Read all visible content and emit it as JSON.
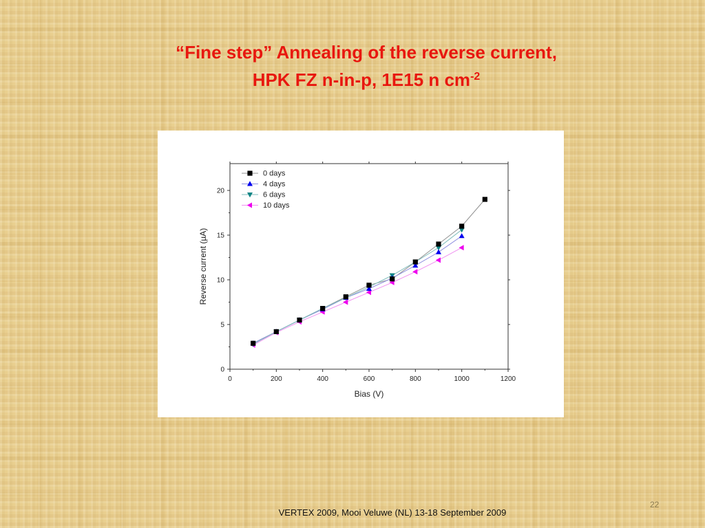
{
  "slide": {
    "title_line1": "“Fine step” Annealing of the reverse current,",
    "title_line2": "HPK FZ n-in-p, 1E15 n cm",
    "title_superscript": "-2",
    "footer": "VERTEX 2009, Mooi Veluwe (NL) 13-18 September 2009",
    "page_number": "22"
  },
  "chart_data": {
    "type": "line",
    "xlabel": "Bias (V)",
    "ylabel": "Reverse current (µA)",
    "xlim": [
      0,
      1200
    ],
    "ylim": [
      0,
      23
    ],
    "xticks": [
      "0",
      "200",
      "400",
      "600",
      "800",
      "1000",
      "1200"
    ],
    "yticks": [
      "0",
      "5",
      "10",
      "15",
      "20"
    ],
    "legend_position": "top-left",
    "grid": false,
    "series": [
      {
        "name": "0 days",
        "marker": "square",
        "color": "#000000",
        "line_color": "#909090",
        "x": [
          100,
          200,
          300,
          400,
          500,
          600,
          700,
          800,
          900,
          1000,
          1100
        ],
        "y": [
          2.9,
          4.2,
          5.5,
          6.8,
          8.1,
          9.4,
          10.1,
          12.0,
          14.0,
          16.0,
          19.0
        ]
      },
      {
        "name": "4 days",
        "marker": "triangle-up",
        "color": "#0000ee",
        "line_color": "#9090e0",
        "x": [
          100,
          200,
          300,
          400,
          500,
          600,
          700,
          800,
          900,
          1000
        ],
        "y": [
          2.9,
          4.2,
          5.5,
          6.7,
          8.0,
          9.0,
          10.2,
          11.6,
          13.1,
          14.9
        ]
      },
      {
        "name": "6 days",
        "marker": "triangle-down",
        "color": "#108585",
        "line_color": "#80bcbc",
        "x": [
          100,
          200,
          300,
          400,
          500,
          600,
          700,
          800,
          900,
          1000
        ],
        "y": [
          2.8,
          4.2,
          5.5,
          6.8,
          8.0,
          9.2,
          10.5,
          12.0,
          13.6,
          15.6
        ]
      },
      {
        "name": "10 days",
        "marker": "triangle-left",
        "color": "#ee00ee",
        "line_color": "#f090f0",
        "x": [
          100,
          200,
          300,
          400,
          500,
          600,
          700,
          800,
          900,
          1000
        ],
        "y": [
          2.7,
          4.1,
          5.3,
          6.4,
          7.5,
          8.6,
          9.7,
          10.9,
          12.2,
          13.6
        ]
      }
    ]
  }
}
